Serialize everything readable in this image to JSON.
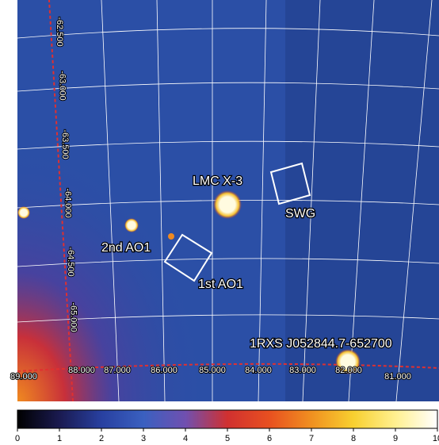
{
  "image": {
    "dec_labels": [
      "-62.500",
      "-63.000",
      "-63.500",
      "-64.000",
      "-64.500",
      "-65.000"
    ],
    "ra_labels": [
      "89.000",
      "88.000",
      "87.000",
      "86.000",
      "85.000",
      "84.000",
      "83.000",
      "82.000",
      "81.000"
    ],
    "annotations": [
      "LMC X-3",
      "SWG",
      "2nd AO1",
      "1st AO1",
      "1RXS J052844.7-652700"
    ]
  },
  "colorbar": {
    "lim": [
      0,
      10
    ],
    "ticks": [
      0,
      1,
      2,
      3,
      4,
      5,
      6,
      7,
      8,
      9,
      10
    ]
  }
}
